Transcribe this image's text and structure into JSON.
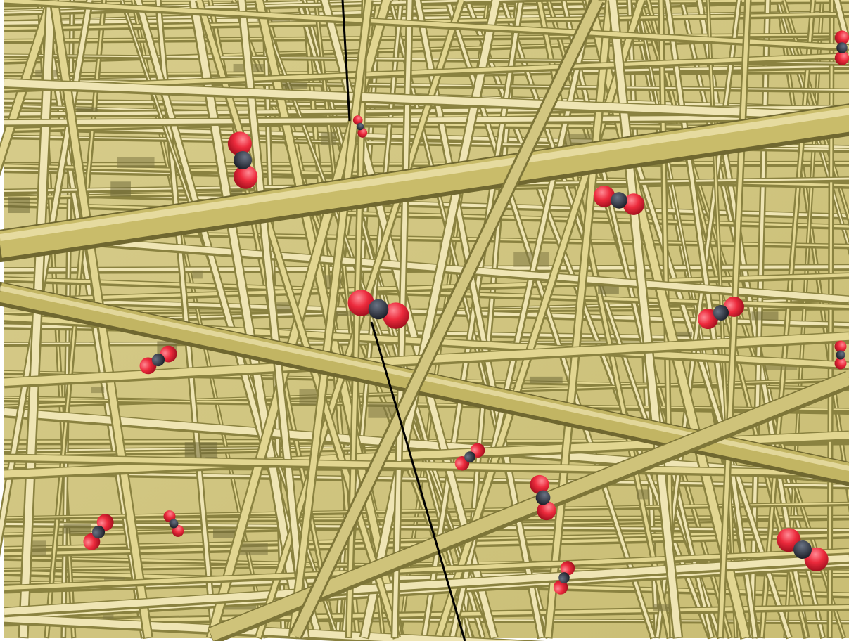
{
  "scene": {
    "subject": "fiber-mesh-with-molecules",
    "colors": {
      "page": "#ffffff",
      "fiber_light": "#efe6b6",
      "fiber_mid": "#c8bc6e",
      "fiber_dark": "#8f8640",
      "void": "#6f6a38",
      "oxygen_atom": "#e8263a",
      "carbon_atom": "#2a2d3a",
      "annotation_line": "#000000"
    },
    "molecule_count": 14,
    "annotation_line_count": 2
  }
}
